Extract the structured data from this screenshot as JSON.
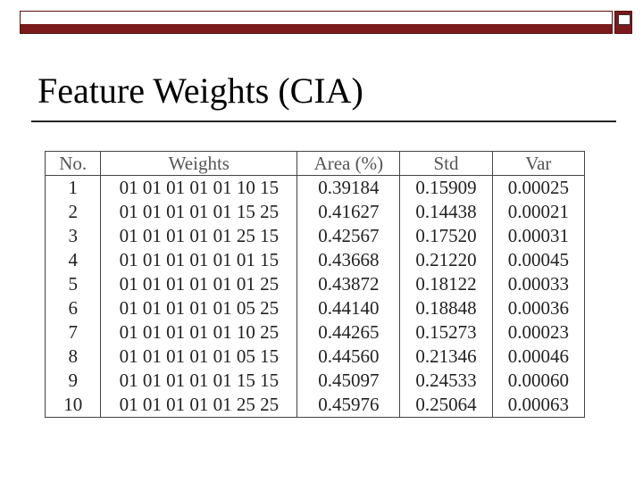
{
  "slide": {
    "title": "Feature Weights (CIA)"
  },
  "table": {
    "header": [
      "No.",
      "Weights",
      "Area (%)",
      "Std",
      "Var"
    ],
    "rows": [
      [
        "1",
        "01 01 01 01 01 10 15",
        "0.39184",
        "0.15909",
        "0.00025"
      ],
      [
        "2",
        "01 01 01 01 01 15 25",
        "0.41627",
        "0.14438",
        "0.00021"
      ],
      [
        "3",
        "01 01 01 01 01 25 15",
        "0.42567",
        "0.17520",
        "0.00031"
      ],
      [
        "4",
        "01 01 01 01 01 01 15",
        "0.43668",
        "0.21220",
        "0.00045"
      ],
      [
        "5",
        "01 01 01 01 01 01 25",
        "0.43872",
        "0.18122",
        "0.00033"
      ],
      [
        "6",
        "01 01 01 01 01 05 25",
        "0.44140",
        "0.18848",
        "0.00036"
      ],
      [
        "7",
        "01 01 01 01 01 10 25",
        "0.44265",
        "0.15273",
        "0.00023"
      ],
      [
        "8",
        "01 01 01 01 01 05 15",
        "0.44560",
        "0.21346",
        "0.00046"
      ],
      [
        "9",
        "01 01 01 01 01 15 15",
        "0.45097",
        "0.24533",
        "0.00060"
      ],
      [
        "10",
        "01 01 01 01 01 25 25",
        "0.45976",
        "0.25064",
        "0.00063"
      ]
    ]
  }
}
